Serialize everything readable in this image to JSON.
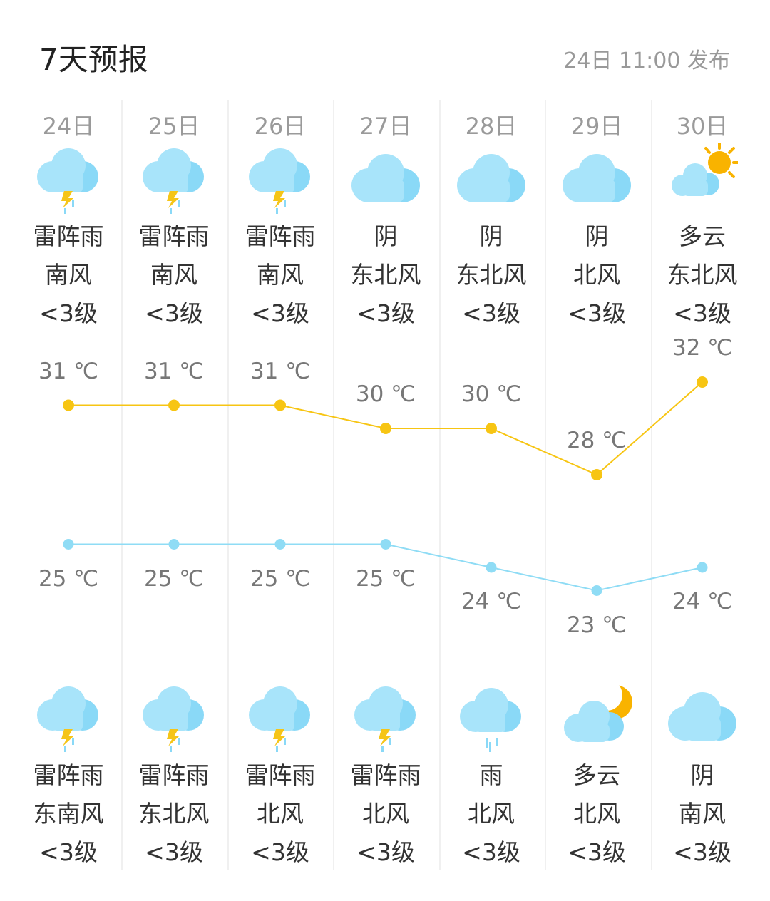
{
  "header": {
    "title": "7天预报",
    "published": "24日 11:00 发布"
  },
  "colors": {
    "high_line": "#f7c513",
    "low_line": "#8fdcf5",
    "cloud": "#a8e4fa",
    "cloud_dark": "#8ad9f7",
    "sun": "#f9b300",
    "bolt": "#f5c518"
  },
  "temp_unit": "℃",
  "days": [
    {
      "date": "24日",
      "day": {
        "icon": "thunder-rain-icon",
        "weather": "雷阵雨",
        "wind": "南风",
        "level": "<3级"
      },
      "high": 31,
      "low": 25,
      "high_label": "31 ℃",
      "low_label": "25 ℃",
      "night": {
        "icon": "thunder-rain-icon",
        "weather": "雷阵雨",
        "wind": "东南风",
        "level": "<3级"
      }
    },
    {
      "date": "25日",
      "day": {
        "icon": "thunder-rain-icon",
        "weather": "雷阵雨",
        "wind": "南风",
        "level": "<3级"
      },
      "high": 31,
      "low": 25,
      "high_label": "31 ℃",
      "low_label": "25 ℃",
      "night": {
        "icon": "thunder-rain-icon",
        "weather": "雷阵雨",
        "wind": "东北风",
        "level": "<3级"
      }
    },
    {
      "date": "26日",
      "day": {
        "icon": "thunder-rain-icon",
        "weather": "雷阵雨",
        "wind": "南风",
        "level": "<3级"
      },
      "high": 31,
      "low": 25,
      "high_label": "31 ℃",
      "low_label": "25 ℃",
      "night": {
        "icon": "thunder-rain-icon",
        "weather": "雷阵雨",
        "wind": "北风",
        "level": "<3级"
      }
    },
    {
      "date": "27日",
      "day": {
        "icon": "overcast-icon",
        "weather": "阴",
        "wind": "东北风",
        "level": "<3级"
      },
      "high": 30,
      "low": 25,
      "high_label": "30 ℃",
      "low_label": "25 ℃",
      "night": {
        "icon": "thunder-rain-icon",
        "weather": "雷阵雨",
        "wind": "北风",
        "level": "<3级"
      }
    },
    {
      "date": "28日",
      "day": {
        "icon": "overcast-icon",
        "weather": "阴",
        "wind": "东北风",
        "level": "<3级"
      },
      "high": 30,
      "low": 24,
      "high_label": "30 ℃",
      "low_label": "24 ℃",
      "night": {
        "icon": "rain-icon",
        "weather": "雨",
        "wind": "北风",
        "level": "<3级"
      }
    },
    {
      "date": "29日",
      "day": {
        "icon": "overcast-icon",
        "weather": "阴",
        "wind": "北风",
        "level": "<3级"
      },
      "high": 28,
      "low": 23,
      "high_label": "28 ℃",
      "low_label": "23 ℃",
      "night": {
        "icon": "partly-cloudy-moon-icon",
        "weather": "多云",
        "wind": "北风",
        "level": "<3级"
      }
    },
    {
      "date": "30日",
      "day": {
        "icon": "partly-cloudy-sun-icon",
        "weather": "多云",
        "wind": "东北风",
        "level": "<3级"
      },
      "high": 32,
      "low": 24,
      "high_label": "32 ℃",
      "low_label": "24 ℃",
      "night": {
        "icon": "overcast-icon",
        "weather": "阴",
        "wind": "南风",
        "level": "<3级"
      }
    }
  ]
}
